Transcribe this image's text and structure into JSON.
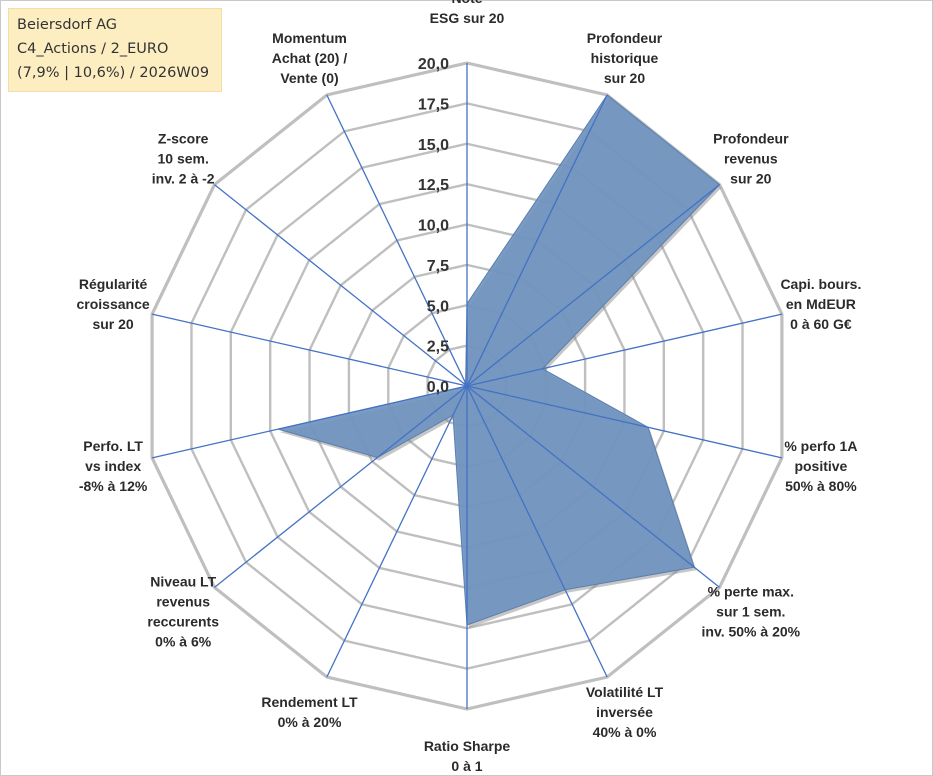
{
  "title_box": {
    "line1": "Beiersdorf AG",
    "line2": "C4_Actions / 2_EURO",
    "line3": "(7,9% | 10,6%) / 2026W09"
  },
  "chart_data": {
    "type": "radar",
    "axes": [
      {
        "label": [
          "Note",
          "ESG sur 20"
        ],
        "value": 5.1
      },
      {
        "label": [
          "Profondeur",
          "historique",
          "sur 20"
        ],
        "value": 20.0
      },
      {
        "label": [
          "Profondeur",
          "revenus",
          "sur 20"
        ],
        "value": 20.0
      },
      {
        "label": [
          "Capi. bours.",
          "en MdEUR",
          "0 à 60 G€"
        ],
        "value": 4.8
      },
      {
        "label": [
          "% perfo 1A",
          "positive",
          "50% à 80%"
        ],
        "value": 11.5
      },
      {
        "label": [
          "% perte max.",
          "sur 1 sem.",
          "inv. 50% à 20%"
        ],
        "value": 18.0
      },
      {
        "label": [
          "Volatilité LT",
          "inversée",
          "40% à 0%"
        ],
        "value": 14.0
      },
      {
        "label": [
          "Ratio Sharpe",
          "0 à 1"
        ],
        "value": 14.8
      },
      {
        "label": [
          "Rendement LT",
          "0% à 20%"
        ],
        "value": 2.0
      },
      {
        "label": [
          "Niveau LT",
          "revenus",
          "reccurents",
          "0% à 6%"
        ],
        "value": 7.1
      },
      {
        "label": [
          "Perfo. LT",
          "vs index",
          "-8% à 12%"
        ],
        "value": 12.0
      },
      {
        "label": [
          "Régularité",
          "croissance",
          "sur 20"
        ],
        "value": 0.0
      },
      {
        "label": [
          "Z-score",
          "10 sem.",
          "inv. 2 à -2"
        ],
        "value": 0.3
      },
      {
        "label": [
          "Momentum",
          "Achat (20) /",
          "Vente (0)"
        ],
        "value": 0.2
      }
    ],
    "r_ticks": [
      "0,0",
      "2,5",
      "5,0",
      "7,5",
      "10,0",
      "12,5",
      "15,0",
      "17,5",
      "20,0"
    ],
    "r_min": 0,
    "r_max": 20,
    "r_step": 2.5,
    "grid": true,
    "colors": {
      "fill": "#6f93c0",
      "fill_edge": "#5b7fae",
      "spoke": "#4472c4",
      "grid": "#bfbfbf",
      "title_bg": "#fdeec2"
    }
  }
}
